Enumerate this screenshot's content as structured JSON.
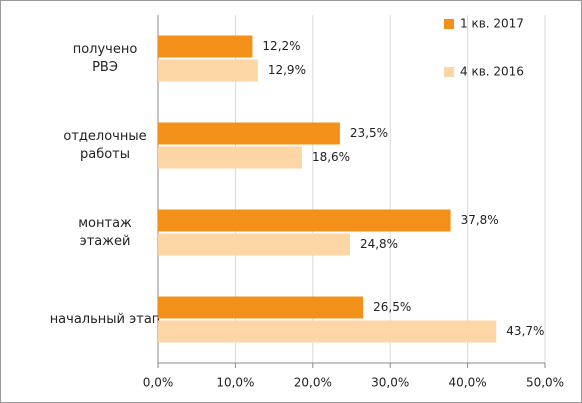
{
  "chart_data": {
    "type": "hbar",
    "categories": [
      [
        "получено",
        "РВЭ"
      ],
      [
        "отделочные",
        "работы"
      ],
      [
        "монтаж",
        "этажей"
      ],
      [
        "начальный этап"
      ]
    ],
    "series": [
      {
        "name": "1 кв. 2017",
        "color": "#f39019",
        "values": [
          12.2,
          23.5,
          37.8,
          26.5
        ],
        "value_labels": [
          "12,2%",
          "23,5%",
          "37,8%",
          "26,5%"
        ]
      },
      {
        "name": "4 кв. 2016",
        "color": "#fcd6a4",
        "values": [
          12.9,
          18.6,
          24.8,
          43.7
        ],
        "value_labels": [
          "12,9%",
          "18,6%",
          "24,8%",
          "43,7%"
        ]
      }
    ],
    "xlim": [
      0,
      50
    ],
    "xticks": [
      {
        "value": 0,
        "label": "0,0%"
      },
      {
        "value": 10,
        "label": "10,0%"
      },
      {
        "value": 20,
        "label": "20,0%"
      },
      {
        "value": 30,
        "label": "30,0%"
      },
      {
        "value": 40,
        "label": "40,0%"
      },
      {
        "value": 50,
        "label": "50,0%"
      }
    ],
    "grid": true,
    "legend": "upper-right"
  }
}
